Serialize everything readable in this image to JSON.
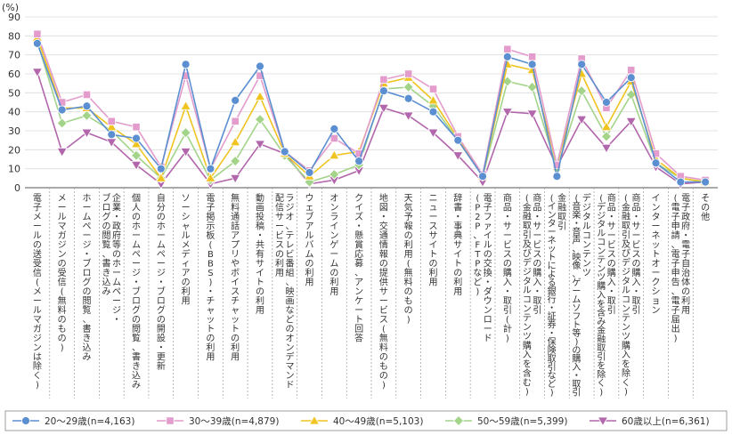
{
  "chart_data": {
    "type": "line",
    "unit_label": "(%)",
    "ylim": [
      0,
      90
    ],
    "yticks": [
      0,
      10,
      20,
      30,
      40,
      50,
      60,
      70,
      80,
      90
    ],
    "grid": true,
    "legend_position": "bottom",
    "categories": [
      [
        "電子メールの送受信(メールマガジンは除く)"
      ],
      [
        "メールマガジンの受信(無料のもの)"
      ],
      [
        "ホームページ・ブログの閲覧、書き込み"
      ],
      [
        "企業・政府等のホームページ・",
        "ブログの閲覧、書き込み"
      ],
      [
        "個人のホームページ・ブログの閲覧、書き込み"
      ],
      [
        "自分のホームページ・ブログの開設・更新"
      ],
      [
        "ソーシャルメディアの利用"
      ],
      [
        "電子掲示板(BBS)・チャットの利用"
      ],
      [
        "無料通話アプリやボイスチャットの利用"
      ],
      [
        "動画投稿・共有サイトの利用"
      ],
      [
        "ラジオ、テレビ番組、映画などのオンデマンド",
        "配信サービスの利用"
      ],
      [
        "ウェブアルバムの利用"
      ],
      [
        "オンラインゲームの利用"
      ],
      [
        "クイズ・懸賞応募、アンケート回答"
      ],
      [
        "地図・交通情報の提供サービス(無料のもの)"
      ],
      [
        "天気予報の利用(無料のもの)"
      ],
      [
        "ニュースサイトの利用"
      ],
      [
        "辞書・事典サイトの利用"
      ],
      [
        "電子ファイルの交換・ダウンロード",
        "(P2P、FTPなど)"
      ],
      [
        "商品・サービスの購入・取引(計)"
      ],
      [
        "商品・サービスの購入・取引",
        "(金融取引及びデジタルコンテンツ購入を含む)"
      ],
      [
        "金融取引",
        "(インターネットによる銀行・証券・保険取引など)"
      ],
      [
        "デジタルコンテンツ",
        "(音楽・音声、映像、ゲームソフト等)の購入・取引"
      ],
      [
        "商品・サービスの購入・取引",
        "(デジタルコンテンツ購入を含み金融取引を除く)"
      ],
      [
        "商品・サービスの購入・取引",
        "(金融取引及びデジタルコンテンツ購入を除く)"
      ],
      [
        "インターネットオークション"
      ],
      [
        "電子政府・電子自治体の利用",
        "(電子申請、電子申告、電子届出)"
      ],
      [
        "その他"
      ]
    ],
    "series": [
      {
        "name": "20～29歳(n=4,163)",
        "color": "#5b8fd1",
        "marker": "circle",
        "values": [
          76,
          41,
          43,
          28,
          26,
          10,
          65,
          10,
          46,
          64,
          19,
          8,
          31,
          14,
          51,
          47,
          40,
          25,
          6,
          69,
          65,
          6,
          65,
          45,
          58,
          13,
          3,
          3
        ]
      },
      {
        "name": "30～39歳(n=4,879)",
        "color": "#e39ccb",
        "marker": "square",
        "values": [
          81,
          45,
          49,
          35,
          32,
          11,
          59,
          10,
          35,
          59,
          19,
          9,
          26,
          18,
          57,
          60,
          52,
          27,
          7,
          73,
          69,
          12,
          68,
          42,
          62,
          18,
          6,
          4
        ]
      },
      {
        "name": "40～49歳(n=5,103)",
        "color": "#f0c420",
        "marker": "triangle",
        "values": [
          79,
          42,
          42,
          32,
          23,
          5,
          43,
          5,
          24,
          48,
          18,
          6,
          17,
          19,
          55,
          58,
          46,
          26,
          6,
          65,
          62,
          12,
          60,
          32,
          56,
          15,
          5,
          3
        ]
      },
      {
        "name": "50～59歳(n=5,399)",
        "color": "#a3d48a",
        "marker": "diamond",
        "values": [
          77,
          34,
          38,
          30,
          17,
          5,
          29,
          4,
          14,
          36,
          17,
          3,
          7,
          12,
          52,
          53,
          43,
          25,
          6,
          56,
          53,
          10,
          51,
          27,
          49,
          13,
          5,
          3
        ]
      },
      {
        "name": "60歳以上(n=6,361)",
        "color": "#b266ac",
        "marker": "triangle-down",
        "values": [
          61,
          19,
          29,
          24,
          12,
          2,
          19,
          2,
          5,
          23,
          18,
          2,
          4,
          9,
          42,
          38,
          29,
          17,
          3,
          40,
          39,
          11,
          36,
          21,
          35,
          11,
          2,
          3
        ]
      }
    ]
  }
}
